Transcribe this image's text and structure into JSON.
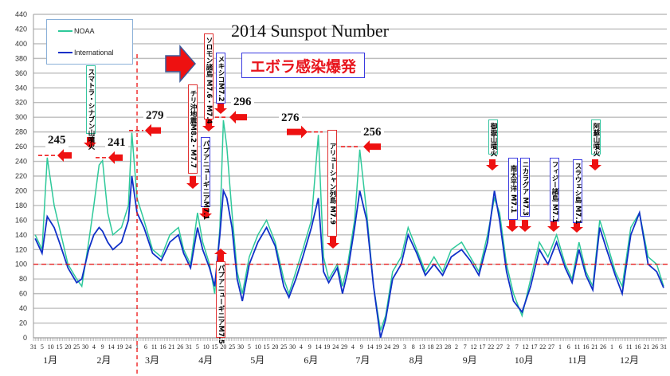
{
  "chart_data": {
    "type": "line",
    "title": "2014 Sunspot Number",
    "ylim": [
      0,
      440
    ],
    "ytick_step": 20,
    "grid": true,
    "legend_placement": "top-left",
    "x_start": "2013-12-31",
    "x_end": "2014-12-31",
    "x_tick_labels": [
      "31",
      "5",
      "10",
      "15",
      "20",
      "25",
      "30",
      "4",
      "9",
      "14",
      "19",
      "24",
      "1",
      "6",
      "11",
      "16",
      "21",
      "26",
      "31",
      "5",
      "10",
      "15",
      "20",
      "25",
      "30",
      "5",
      "10",
      "15",
      "20",
      "25",
      "30",
      "4",
      "9",
      "14",
      "19",
      "24",
      "29",
      "4",
      "9",
      "14",
      "19",
      "24",
      "29",
      "3",
      "8",
      "13",
      "18",
      "23",
      "28",
      "2",
      "7",
      "12",
      "17",
      "22",
      "27",
      "2",
      "7",
      "12",
      "17",
      "22",
      "27",
      "1",
      "6",
      "11",
      "16",
      "21",
      "26",
      "1",
      "6",
      "11",
      "16",
      "21",
      "26",
      "31"
    ],
    "month_labels": [
      "1月",
      "2月",
      "3月",
      "4月",
      "5月",
      "6月",
      "7月",
      "8月",
      "9月",
      "10月",
      "11月",
      "12月"
    ],
    "reference_line_y": 100,
    "reference_vline_x": "2014-03-01",
    "colors": {
      "NOAA": "#2ec99a",
      "International": "#1030c8",
      "annotation": "#ee1111"
    },
    "x": [
      "2014-01-01",
      "2014-01-05",
      "2014-01-08",
      "2014-01-12",
      "2014-01-15",
      "2014-01-20",
      "2014-01-25",
      "2014-01-28",
      "2014-02-01",
      "2014-02-04",
      "2014-02-07",
      "2014-02-09",
      "2014-02-12",
      "2014-02-15",
      "2014-02-20",
      "2014-02-24",
      "2014-02-26",
      "2014-03-01",
      "2014-03-05",
      "2014-03-10",
      "2014-03-15",
      "2014-03-20",
      "2014-03-25",
      "2014-03-28",
      "2014-04-01",
      "2014-04-05",
      "2014-04-08",
      "2014-04-12",
      "2014-04-15",
      "2014-04-18",
      "2014-04-20",
      "2014-04-22",
      "2014-04-25",
      "2014-04-28",
      "2014-05-01",
      "2014-05-05",
      "2014-05-10",
      "2014-05-15",
      "2014-05-20",
      "2014-05-25",
      "2014-05-28",
      "2014-06-01",
      "2014-06-05",
      "2014-06-10",
      "2014-06-14",
      "2014-06-17",
      "2014-06-20",
      "2014-06-25",
      "2014-06-28",
      "2014-07-01",
      "2014-07-05",
      "2014-07-08",
      "2014-07-12",
      "2014-07-16",
      "2014-07-20",
      "2014-07-23",
      "2014-07-27",
      "2014-08-01",
      "2014-08-05",
      "2014-08-10",
      "2014-08-15",
      "2014-08-20",
      "2014-08-25",
      "2014-08-30",
      "2014-09-05",
      "2014-09-10",
      "2014-09-15",
      "2014-09-20",
      "2014-09-24",
      "2014-09-27",
      "2014-10-01",
      "2014-10-05",
      "2014-10-10",
      "2014-10-15",
      "2014-10-20",
      "2014-10-25",
      "2014-10-30",
      "2014-11-04",
      "2014-11-08",
      "2014-11-12",
      "2014-11-16",
      "2014-11-20",
      "2014-11-24",
      "2014-11-28",
      "2014-12-03",
      "2014-12-07",
      "2014-12-12",
      "2014-12-17",
      "2014-12-22",
      "2014-12-27",
      "2014-12-31"
    ],
    "series": [
      {
        "name": "NOAA",
        "values": [
          140,
          120,
          245,
          180,
          150,
          100,
          80,
          70,
          130,
          180,
          235,
          241,
          170,
          140,
          150,
          180,
          279,
          190,
          160,
          120,
          110,
          140,
          150,
          120,
          100,
          170,
          130,
          100,
          60,
          150,
          296,
          260,
          170,
          90,
          60,
          110,
          140,
          160,
          130,
          80,
          60,
          90,
          120,
          160,
          276,
          110,
          80,
          100,
          70,
          100,
          160,
          256,
          170,
          70,
          10,
          30,
          90,
          110,
          150,
          120,
          90,
          110,
          90,
          120,
          130,
          110,
          90,
          140,
          190,
          170,
          100,
          60,
          30,
          80,
          130,
          110,
          140,
          100,
          80,
          130,
          90,
          70,
          160,
          130,
          90,
          70,
          150,
          170,
          110,
          100,
          70
        ]
      },
      {
        "name": "International",
        "values": [
          135,
          115,
          165,
          150,
          130,
          95,
          75,
          80,
          120,
          140,
          150,
          145,
          130,
          120,
          130,
          160,
          220,
          170,
          150,
          115,
          105,
          130,
          140,
          115,
          95,
          150,
          120,
          95,
          70,
          140,
          200,
          190,
          150,
          80,
          50,
          100,
          130,
          150,
          125,
          70,
          55,
          80,
          110,
          150,
          190,
          90,
          75,
          95,
          60,
          90,
          150,
          200,
          160,
          70,
          0,
          25,
          80,
          100,
          140,
          115,
          85,
          100,
          85,
          110,
          120,
          105,
          85,
          130,
          200,
          160,
          90,
          50,
          35,
          70,
          120,
          100,
          130,
          95,
          75,
          120,
          85,
          65,
          150,
          120,
          85,
          60,
          140,
          170,
          100,
          90,
          68
        ]
      }
    ]
  },
  "annotations": {
    "ebola": "エボラ感染爆発",
    "sumatra": "スマトラ・シナブン山噴火",
    "chile": "チリ沖地震M8.2・M7.7",
    "solomon": "ソロモン諸島 M7.6・M7.4",
    "png1": "パプアニューギニアM7.1",
    "mexico": "メキシコM7.2",
    "png2": "パプアニューギニアM7.5",
    "aleutian": "アリューシャン列島 M7.9",
    "ontake": "御嶽山噴火",
    "southpacific": "南太平洋 M7.1",
    "nicaragua": "ニカラグア M7.3",
    "fiji": "フィジー諸島 M7.1",
    "sulawesi": "スラウェシ島 M7.1",
    "aso": "阿蘇山噴火",
    "v245": "245",
    "v241": "241",
    "v279": "279",
    "v296": "296",
    "v276": "276",
    "v256": "256"
  }
}
